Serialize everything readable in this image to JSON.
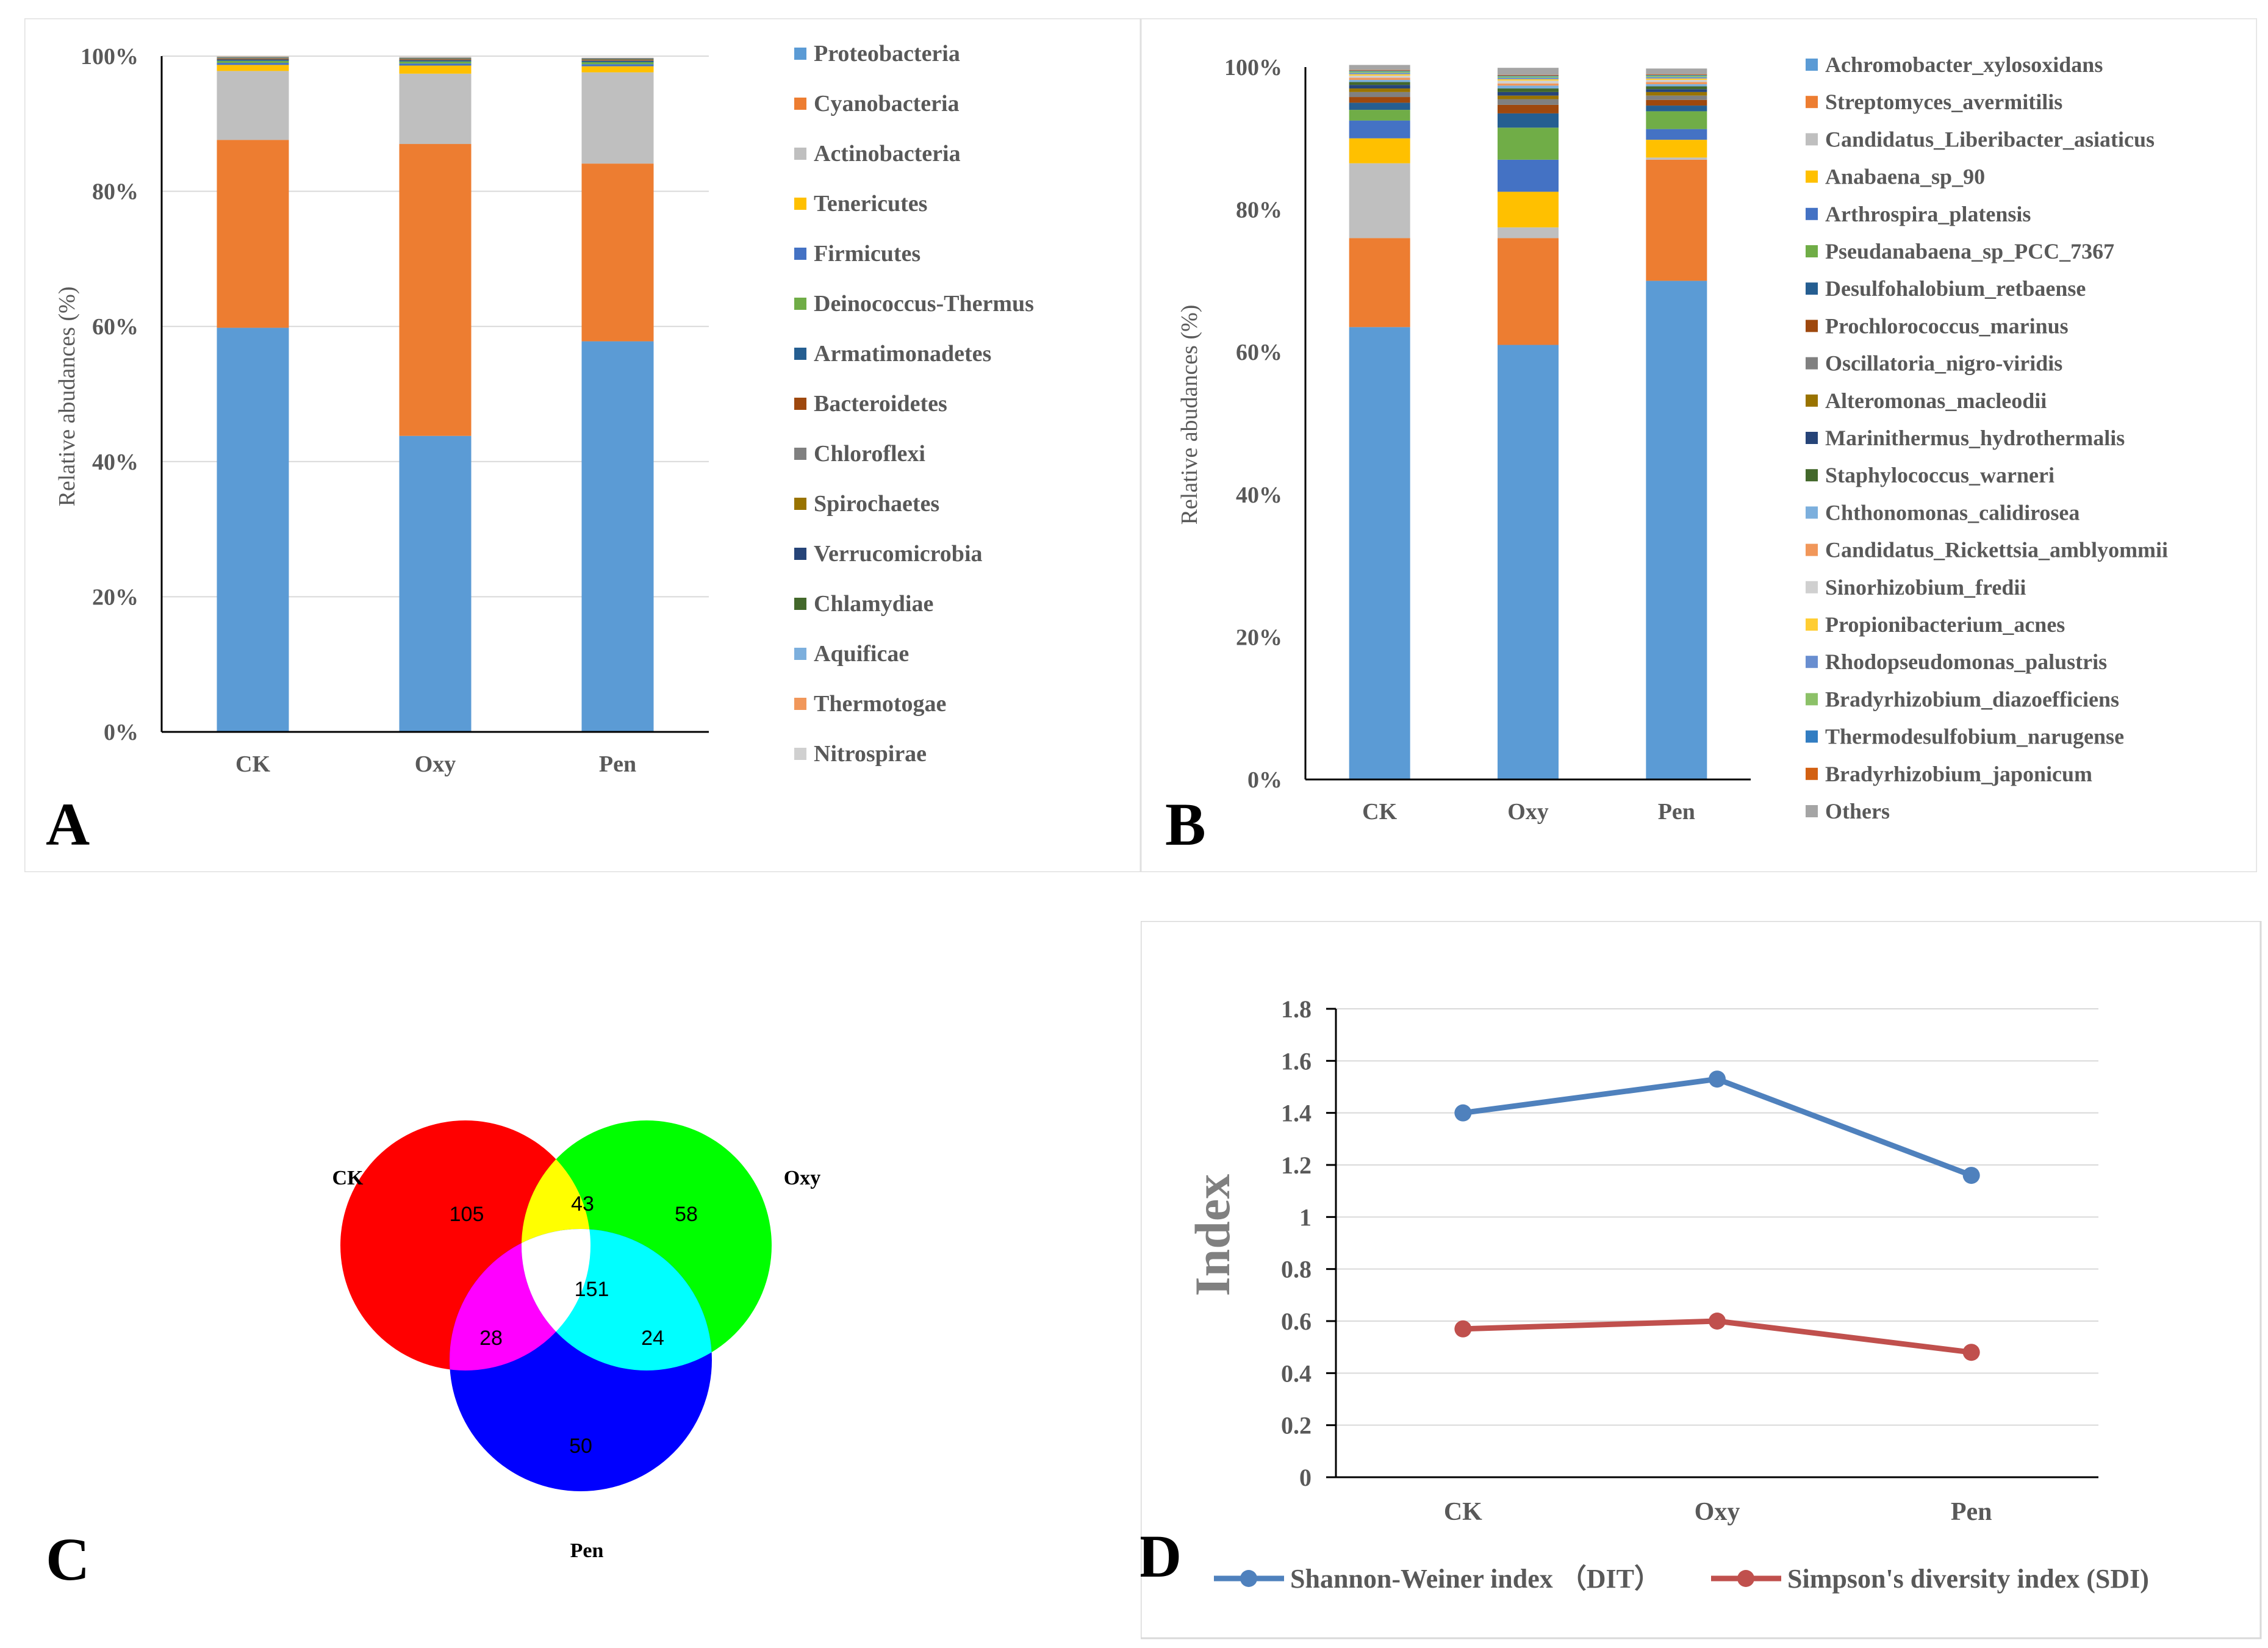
{
  "chart_data": [
    {
      "panel": "A",
      "type": "bar",
      "stacked": true,
      "title": "",
      "xlabel": "",
      "ylabel": "Relative abudances (%)",
      "ylim": [
        0,
        100
      ],
      "yticks": [
        "0%",
        "20%",
        "40%",
        "60%",
        "80%",
        "100%"
      ],
      "categories": [
        "CK",
        "Oxy",
        "Pen"
      ],
      "legend_position": "right",
      "series": [
        {
          "name": "Proteobacteria",
          "color": "#5B9BD5",
          "values": [
            59.8,
            43.8,
            57.8
          ]
        },
        {
          "name": "Cyanobacteria",
          "color": "#ED7D31",
          "values": [
            27.8,
            43.2,
            26.3
          ]
        },
        {
          "name": "Actinobacteria",
          "color": "#BFBFBF",
          "values": [
            10.2,
            10.4,
            13.5
          ]
        },
        {
          "name": "Tenericutes",
          "color": "#FFC000",
          "values": [
            0.9,
            1.2,
            0.9
          ]
        },
        {
          "name": "Firmicutes",
          "color": "#4472C4",
          "values": [
            0.3,
            0.3,
            0.3
          ]
        },
        {
          "name": "Deinococcus-Thermus",
          "color": "#70AD47",
          "values": [
            0.3,
            0.3,
            0.3
          ]
        },
        {
          "name": "Armatimonadetes",
          "color": "#255E91",
          "values": [
            0.2,
            0.2,
            0.2
          ]
        },
        {
          "name": "Bacteroidetes",
          "color": "#9E480E",
          "values": [
            0.1,
            0.1,
            0.1
          ]
        },
        {
          "name": "Chloroflexi",
          "color": "#808080",
          "values": [
            0.1,
            0.1,
            0.1
          ]
        },
        {
          "name": "Spirochaetes",
          "color": "#997300",
          "values": [
            0.05,
            0.05,
            0.05
          ]
        },
        {
          "name": "Verrucomicrobia",
          "color": "#264478",
          "values": [
            0.05,
            0.05,
            0.05
          ]
        },
        {
          "name": "Chlamydiae",
          "color": "#43682B",
          "values": [
            0.05,
            0.05,
            0.05
          ]
        },
        {
          "name": "Aquificae",
          "color": "#7CAFDD",
          "values": [
            0.05,
            0.05,
            0.05
          ]
        },
        {
          "name": "Thermotogae",
          "color": "#F1975A",
          "values": [
            0.05,
            0.05,
            0.05
          ]
        },
        {
          "name": "Nitrospirae",
          "color": "#D0D0D0",
          "values": [
            0.05,
            0.05,
            0.05
          ]
        }
      ]
    },
    {
      "panel": "B",
      "type": "bar",
      "stacked": true,
      "title": "",
      "xlabel": "",
      "ylabel": "Relative abudances (%)",
      "ylim": [
        0,
        100
      ],
      "yticks": [
        "0%",
        "20%",
        "40%",
        "60%",
        "80%",
        "100%"
      ],
      "categories": [
        "CK",
        "Oxy",
        "Pen"
      ],
      "legend_position": "right",
      "series": [
        {
          "name": "Achromobacter_xylosoxidans",
          "color": "#5B9BD5",
          "values": [
            63.5,
            61.0,
            70.0
          ]
        },
        {
          "name": "Streptomyces_avermitilis",
          "color": "#ED7D31",
          "values": [
            12.5,
            15.0,
            17.0
          ]
        },
        {
          "name": "Candidatus_Liberibacter_asiaticus",
          "color": "#BFBFBF",
          "values": [
            10.5,
            1.5,
            0.3
          ]
        },
        {
          "name": "Anabaena_sp_90",
          "color": "#FFC000",
          "values": [
            3.5,
            5.0,
            2.5
          ]
        },
        {
          "name": "Arthrospira_platensis",
          "color": "#4472C4",
          "values": [
            2.5,
            4.5,
            1.5
          ]
        },
        {
          "name": "Pseudanabaena_sp_PCC_7367",
          "color": "#70AD47",
          "values": [
            1.5,
            4.5,
            2.5
          ]
        },
        {
          "name": "Desulfohalobium_retbaense",
          "color": "#255E91",
          "values": [
            1.0,
            2.0,
            0.8
          ]
        },
        {
          "name": "Prochlorococcus_marinus",
          "color": "#9E480E",
          "values": [
            0.8,
            1.2,
            0.8
          ]
        },
        {
          "name": "Oscillatoria_nigro-viridis",
          "color": "#808080",
          "values": [
            0.7,
            0.8,
            0.6
          ]
        },
        {
          "name": "Alteromonas_macleodii",
          "color": "#997300",
          "values": [
            0.5,
            0.5,
            0.5
          ]
        },
        {
          "name": "Marinithermus_hydrothermalis",
          "color": "#264478",
          "values": [
            0.5,
            0.5,
            0.4
          ]
        },
        {
          "name": "Staphylococcus_warneri",
          "color": "#43682B",
          "values": [
            0.4,
            0.5,
            0.4
          ]
        },
        {
          "name": "Chthonomonas_calidirosea",
          "color": "#7CAFDD",
          "values": [
            0.3,
            0.4,
            0.3
          ]
        },
        {
          "name": "Candidatus_Rickettsia_amblyommii",
          "color": "#F1975A",
          "values": [
            0.3,
            0.3,
            0.3
          ]
        },
        {
          "name": "Sinorhizobium_fredii",
          "color": "#D0D0D0",
          "values": [
            0.3,
            0.4,
            0.3
          ]
        },
        {
          "name": "Propionibacterium_acnes",
          "color": "#FFCD33",
          "values": [
            0.2,
            0.2,
            0.2
          ]
        },
        {
          "name": "Rhodopseudomonas_palustris",
          "color": "#698ED0",
          "values": [
            0.2,
            0.2,
            0.2
          ]
        },
        {
          "name": "Bradyrhizobium_diazoefficiens",
          "color": "#8CC168",
          "values": [
            0.2,
            0.2,
            0.2
          ]
        },
        {
          "name": "Thermodesulfobium_narugense",
          "color": "#327DC2",
          "values": [
            0.1,
            0.1,
            0.1
          ]
        },
        {
          "name": "Bradyrhizobium_japonicum",
          "color": "#D26012",
          "values": [
            0.1,
            0.1,
            0.1
          ]
        },
        {
          "name": "Others",
          "color": "#A5A5A5",
          "values": [
            0.7,
            1.0,
            0.8
          ]
        }
      ]
    },
    {
      "panel": "C",
      "type": "venn",
      "sets": [
        "CK",
        "Oxy",
        "Pen"
      ],
      "regions": {
        "CK_only": 105,
        "Oxy_only": 58,
        "Pen_only": 50,
        "CK_Oxy": 43,
        "CK_Pen": 28,
        "Oxy_Pen": 24,
        "all": 151
      }
    },
    {
      "panel": "D",
      "type": "line",
      "title": "",
      "xlabel": "",
      "ylabel": "Index",
      "ylim": [
        0,
        1.8
      ],
      "yticks": [
        "0",
        "0.2",
        "0.4",
        "0.6",
        "0.8",
        "1",
        "1.2",
        "1.4",
        "1.6",
        "1.8"
      ],
      "categories": [
        "CK",
        "Oxy",
        "Pen"
      ],
      "legend_position": "bottom",
      "series": [
        {
          "name": "Shannon-Weiner index （DIT）",
          "color": "#4F81BD",
          "values": [
            1.4,
            1.53,
            1.16
          ]
        },
        {
          "name": "Simpson's diversity index (SDI)",
          "color": "#C0504D",
          "values": [
            0.57,
            0.6,
            0.48
          ]
        }
      ]
    }
  ]
}
